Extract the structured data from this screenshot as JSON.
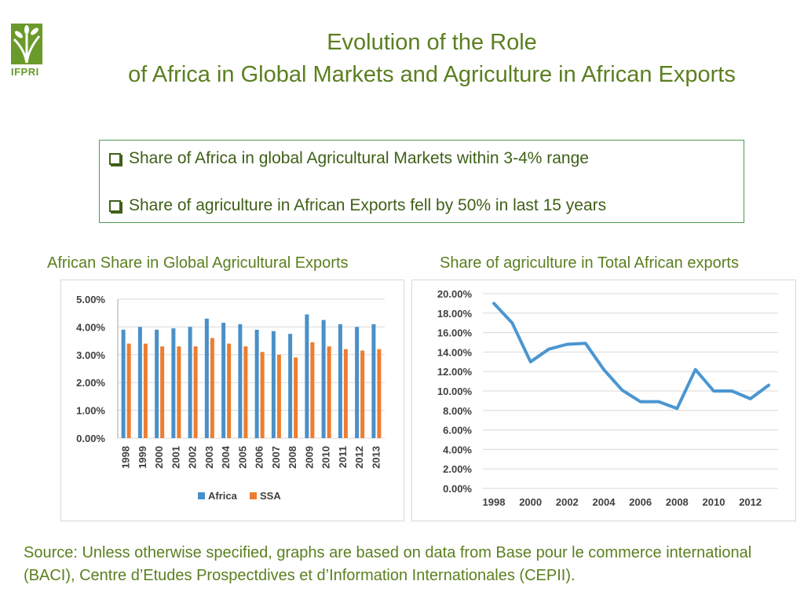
{
  "logo": {
    "text": "IFPRI"
  },
  "title": {
    "line1": "Evolution of the Role",
    "line2": "of Africa in Global Markets and Agriculture in African Exports"
  },
  "callout": {
    "bullets": [
      "Share of Africa in global Agricultural Markets within 3-4% range",
      "Share of agriculture in African Exports fell by 50% in last 15 years"
    ]
  },
  "colors": {
    "africa": "#4a90c8",
    "ssa": "#ed7d31",
    "line": "#4a96d1",
    "grid": "#d9d9d9",
    "tick_text": "#404040"
  },
  "chart_data": [
    {
      "type": "bar",
      "title": "African Share in Global Agricultural Exports",
      "categories": [
        "1998",
        "1999",
        "2000",
        "2001",
        "2002",
        "2003",
        "2004",
        "2005",
        "2006",
        "2007",
        "2008",
        "2009",
        "2010",
        "2011",
        "2012",
        "2013"
      ],
      "series": [
        {
          "name": "Africa",
          "values": [
            3.9,
            4.0,
            3.9,
            3.95,
            4.0,
            4.3,
            4.15,
            4.1,
            3.9,
            3.85,
            3.75,
            4.45,
            4.25,
            4.1,
            4.0,
            4.1
          ]
        },
        {
          "name": "SSA",
          "values": [
            3.4,
            3.4,
            3.3,
            3.3,
            3.3,
            3.6,
            3.4,
            3.3,
            3.1,
            3.0,
            2.9,
            3.45,
            3.3,
            3.2,
            3.15,
            3.2
          ]
        }
      ],
      "ylim": [
        0,
        5
      ],
      "yticks": [
        "5.00%",
        "4.00%",
        "3.00%",
        "2.00%",
        "1.00%",
        "0.00%"
      ],
      "ytick_values": [
        5,
        4,
        3,
        2,
        1,
        0
      ],
      "xlabel": "",
      "ylabel": "",
      "legend": "bottom",
      "grid": true
    },
    {
      "type": "line",
      "title": "Share of agriculture in Total African exports",
      "x": [
        1998,
        1999,
        2000,
        2001,
        2002,
        2003,
        2004,
        2005,
        2006,
        2007,
        2008,
        2009,
        2010,
        2011,
        2012,
        2013
      ],
      "values": [
        19.0,
        17.0,
        13.0,
        14.3,
        14.8,
        14.9,
        12.2,
        10.1,
        8.9,
        8.9,
        8.2,
        12.2,
        10.0,
        10.0,
        9.2,
        10.6
      ],
      "xticks": [
        "1998",
        "2000",
        "2002",
        "2004",
        "2006",
        "2008",
        "2010",
        "2012"
      ],
      "xtick_values": [
        1998,
        2000,
        2002,
        2004,
        2006,
        2008,
        2010,
        2012
      ],
      "yticks": [
        "20.00%",
        "18.00%",
        "16.00%",
        "14.00%",
        "12.00%",
        "10.00%",
        "8.00%",
        "6.00%",
        "4.00%",
        "2.00%",
        "0.00%"
      ],
      "ytick_values": [
        20,
        18,
        16,
        14,
        12,
        10,
        8,
        6,
        4,
        2,
        0
      ],
      "ylim": [
        0,
        20
      ],
      "xlim": [
        1998,
        2013
      ],
      "xlabel": "",
      "ylabel": "",
      "grid": true
    }
  ],
  "source": "Source: Unless otherwise specified, graphs are based on data from Base pour le commerce international (BACI), Centre d’Etudes Prospectdives et d’Information Internationales (CEPII)."
}
